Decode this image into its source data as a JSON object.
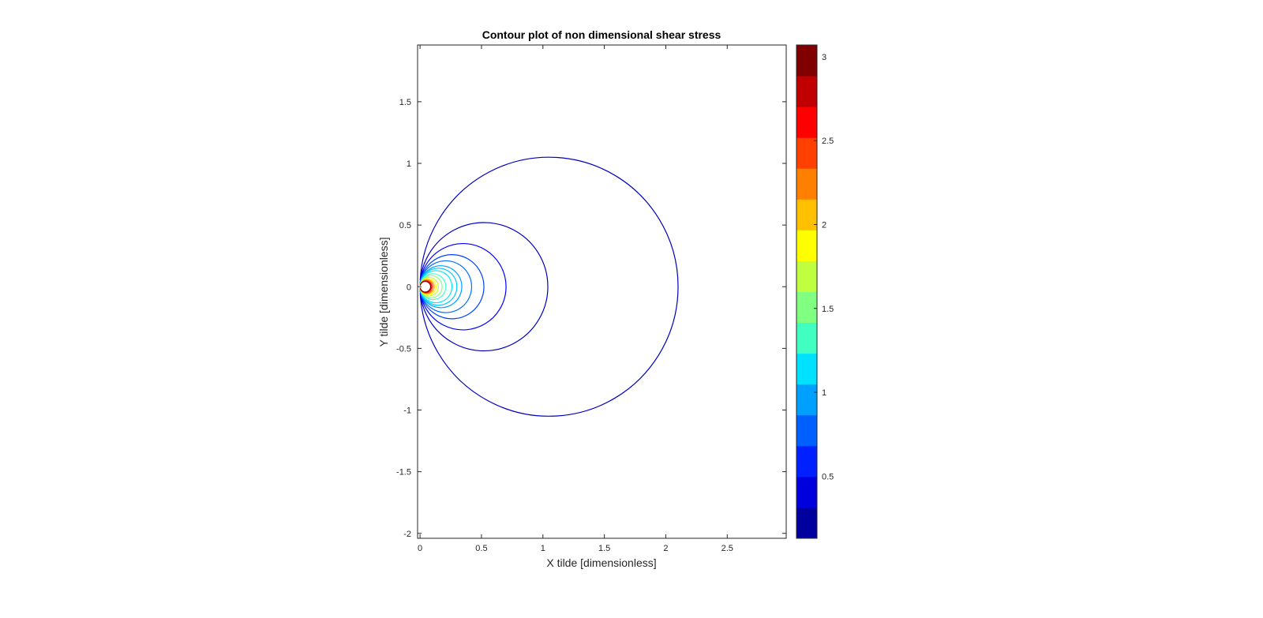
{
  "chart_data": {
    "type": "contour",
    "title": "Contour plot of non dimensional shear stress",
    "xlabel": "X tilde [dimensionless]",
    "ylabel": "Y tilde [dimensionless]",
    "xlim": [
      -0.02,
      2.98
    ],
    "ylim": [
      -2.04,
      1.96
    ],
    "x_ticks": [
      0,
      0.5,
      1,
      1.5,
      2,
      2.5
    ],
    "x_tick_labels": [
      "0",
      "0.5",
      "1",
      "1.5",
      "2",
      "2.5"
    ],
    "y_ticks": [
      -2,
      -1.5,
      -1,
      -0.5,
      0,
      0.5,
      1,
      1.5
    ],
    "y_tick_labels": [
      "-2",
      "-1.5",
      "-1",
      "-0.5",
      "0",
      "0.5",
      "1",
      "1.5"
    ],
    "grid": false,
    "colormap": "jet",
    "contour_levels": [
      {
        "level": 0.1,
        "center": [
          1.05,
          0
        ],
        "radius": 1.05,
        "color": "#0000bf"
      },
      {
        "level": 0.2,
        "center": [
          0.52,
          0
        ],
        "radius": 0.52,
        "color": "#0000bf"
      },
      {
        "level": 0.3,
        "center": [
          0.35,
          0
        ],
        "radius": 0.35,
        "color": "#0000ff"
      },
      {
        "level": 0.4,
        "center": [
          0.26,
          0
        ],
        "radius": 0.26,
        "color": "#0040ff"
      },
      {
        "level": 0.5,
        "center": [
          0.21,
          0
        ],
        "radius": 0.21,
        "color": "#0070ff"
      },
      {
        "level": 0.6,
        "center": [
          0.17,
          0
        ],
        "radius": 0.17,
        "color": "#00a0ff"
      },
      {
        "level": 0.7,
        "center": [
          0.15,
          0
        ],
        "radius": 0.15,
        "color": "#00c8ff"
      },
      {
        "level": 0.8,
        "center": [
          0.13,
          0
        ],
        "radius": 0.13,
        "color": "#00e8ff"
      },
      {
        "level": 1.0,
        "center": [
          0.105,
          0
        ],
        "radius": 0.105,
        "color": "#40ffd0"
      },
      {
        "level": 1.2,
        "center": [
          0.09,
          0
        ],
        "radius": 0.09,
        "color": "#80ff80"
      },
      {
        "level": 1.5,
        "center": [
          0.075,
          0
        ],
        "radius": 0.075,
        "color": "#c0ff40"
      },
      {
        "level": 1.8,
        "center": [
          0.065,
          0
        ],
        "radius": 0.065,
        "color": "#ffff00"
      },
      {
        "level": 2.1,
        "center": [
          0.058,
          0
        ],
        "radius": 0.058,
        "color": "#ffb000"
      },
      {
        "level": 2.4,
        "center": [
          0.052,
          0
        ],
        "radius": 0.052,
        "color": "#ff6000"
      },
      {
        "level": 2.7,
        "center": [
          0.047,
          0
        ],
        "radius": 0.047,
        "color": "#ff0000"
      },
      {
        "level": 3.0,
        "center": [
          0.043,
          0
        ],
        "radius": 0.043,
        "color": "#800000"
      }
    ],
    "colorbar": {
      "range": [
        0.13,
        3.07
      ],
      "ticks": [
        0.5,
        1,
        1.5,
        2,
        2.5,
        3
      ],
      "tick_labels": [
        "0.5",
        "1",
        "1.5",
        "2",
        "2.5",
        "3"
      ],
      "colors": [
        "#00009f",
        "#0000df",
        "#0020ff",
        "#0060ff",
        "#00a0ff",
        "#00e0ff",
        "#40ffc0",
        "#80ff80",
        "#c0ff40",
        "#ffff00",
        "#ffc000",
        "#ff8000",
        "#ff4000",
        "#ff0000",
        "#c00000",
        "#800000"
      ]
    }
  }
}
